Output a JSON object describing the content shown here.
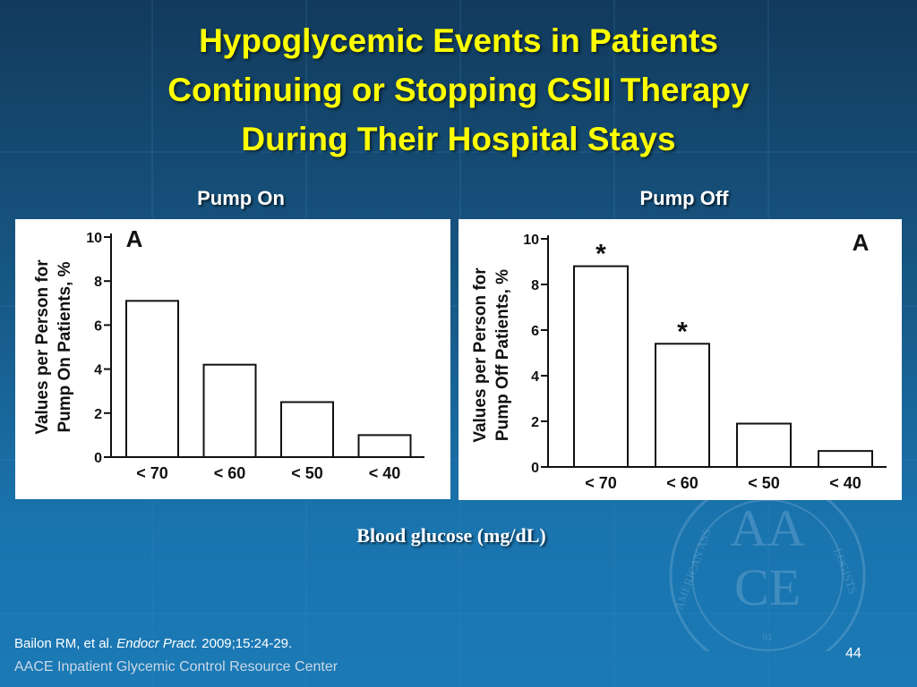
{
  "slide": {
    "title_lines": [
      "Hypoglycemic Events in Patients",
      "Continuing or Stopping CSII Therapy",
      "During Their Hospital Stays"
    ],
    "shared_xlabel": "Blood glucose (mg/dL)",
    "citation": {
      "authors": "Bailon RM, et al. ",
      "journal": "Endocr Pract.",
      "details": " 2009;15:24-29."
    },
    "footer": "AACE Inpatient Glycemic Control Resource Center",
    "page_number": "44",
    "seal": {
      "letters_top": "AA",
      "letters_bottom": "CE",
      "ring_left": "AMERICAN ASS",
      "ring_right": "LOGISTS",
      "bottom_digits": "91"
    }
  },
  "colors": {
    "title": "#ffff00",
    "bar_fill": "#ffffff",
    "bar_stroke": "#111111"
  },
  "chart_data": [
    {
      "type": "bar",
      "panel_title": "Pump On",
      "letter": "A",
      "ylabel_lines": [
        "Values per Person for",
        "Pump On Patients, %"
      ],
      "categories": [
        "< 70",
        "< 60",
        "< 50",
        "< 40"
      ],
      "values": [
        7.1,
        4.2,
        2.5,
        1.0
      ],
      "markers": [
        "",
        "",
        "",
        ""
      ],
      "ylim": [
        0,
        10
      ],
      "yticks": [
        0,
        2,
        4,
        6,
        8,
        10
      ],
      "grid": false,
      "legend": "none"
    },
    {
      "type": "bar",
      "panel_title": "Pump Off",
      "letter": "A",
      "ylabel_lines": [
        "Values per Person for",
        "Pump Off Patients, %"
      ],
      "categories": [
        "< 70",
        "< 60",
        "< 50",
        "< 40"
      ],
      "values": [
        8.8,
        5.4,
        1.9,
        0.7
      ],
      "markers": [
        "*",
        "*",
        "",
        ""
      ],
      "ylim": [
        0,
        10
      ],
      "yticks": [
        0,
        2,
        4,
        6,
        8,
        10
      ],
      "grid": false,
      "legend": "none"
    }
  ]
}
